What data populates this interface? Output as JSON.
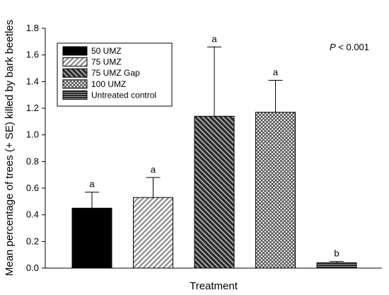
{
  "chart_data": {
    "type": "bar",
    "categories": [
      "50 UMZ",
      "75 UMZ",
      "75 UMZ Gap",
      "100 UMZ",
      "Untreated control"
    ],
    "values": [
      0.45,
      0.53,
      1.14,
      1.17,
      0.04
    ],
    "errors": [
      0.12,
      0.15,
      0.52,
      0.24,
      0.01
    ],
    "significance": [
      "a",
      "a",
      "a",
      "a",
      "b"
    ],
    "xlabel": "Treatment",
    "ylabel": "Mean percentage of trees (+ SE) killed by bark beetles",
    "ylim": [
      0,
      1.8
    ],
    "yticks": [
      0.0,
      0.2,
      0.4,
      0.6,
      0.8,
      1.0,
      1.2,
      1.4,
      1.6,
      1.8
    ],
    "ytick_labels": [
      "0.0",
      "0.2",
      "0.4",
      "0.6",
      "0.8",
      "1.0",
      "1.2",
      "1.4",
      "1.6",
      "1.8"
    ],
    "grid": false,
    "legend_position": "top-left",
    "legend_entries": [
      "50 UMZ",
      "75 UMZ",
      "75 UMZ Gap",
      "100 UMZ",
      "Untreated control"
    ],
    "annotation": {
      "p_symbol": "P",
      "p_rest": " < 0.001"
    },
    "fills": [
      "solid-black",
      "diagonal-light",
      "diagonal-dark",
      "crosshatch",
      "horizontal-dark"
    ]
  }
}
